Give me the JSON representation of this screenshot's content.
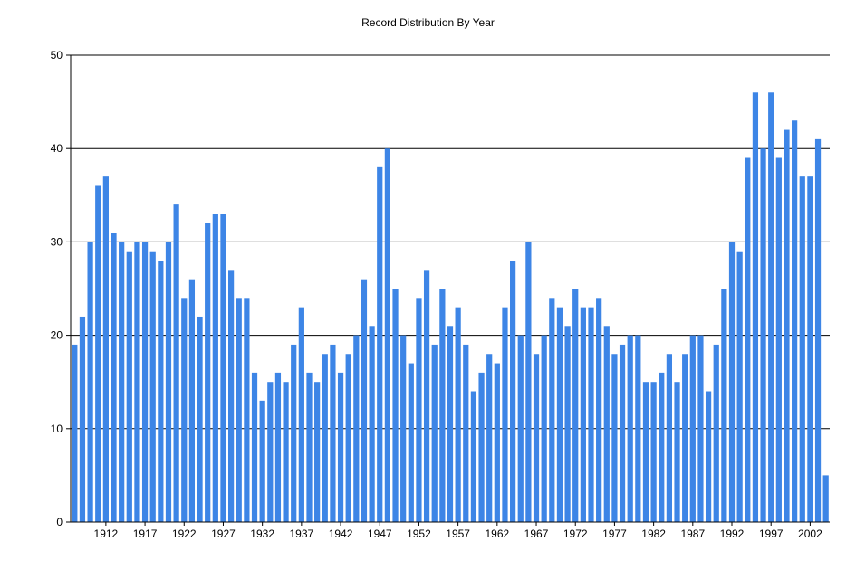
{
  "chart_data": {
    "type": "bar",
    "title": "Record Distribution By Year",
    "xlabel": "",
    "ylabel": "",
    "ylim": [
      0,
      50
    ],
    "y_ticks": [
      0,
      10,
      20,
      30,
      40,
      50
    ],
    "x_tick_labels": [
      "1912",
      "1917",
      "1922",
      "1927",
      "1932",
      "1937",
      "1942",
      "1947",
      "1952",
      "1957",
      "1962",
      "1967",
      "1972",
      "1977",
      "1982",
      "1987",
      "1992",
      "1997",
      "2002"
    ],
    "categories": [
      1908,
      1909,
      1910,
      1911,
      1912,
      1913,
      1914,
      1915,
      1916,
      1917,
      1918,
      1919,
      1920,
      1921,
      1922,
      1923,
      1924,
      1925,
      1926,
      1927,
      1928,
      1929,
      1930,
      1931,
      1932,
      1933,
      1934,
      1935,
      1936,
      1937,
      1938,
      1939,
      1940,
      1941,
      1942,
      1943,
      1944,
      1945,
      1946,
      1947,
      1948,
      1949,
      1950,
      1951,
      1952,
      1953,
      1954,
      1955,
      1956,
      1957,
      1958,
      1959,
      1960,
      1961,
      1962,
      1963,
      1964,
      1965,
      1966,
      1967,
      1968,
      1969,
      1970,
      1971,
      1972,
      1973,
      1974,
      1975,
      1976,
      1977,
      1978,
      1979,
      1980,
      1981,
      1982,
      1983,
      1984,
      1985,
      1986,
      1987,
      1988,
      1989,
      1990,
      1991,
      1992,
      1993,
      1994,
      1995,
      1996,
      1997,
      1998,
      1999,
      2000,
      2001,
      2002,
      2003,
      2004
    ],
    "values": [
      19,
      22,
      30,
      36,
      37,
      31,
      30,
      29,
      30,
      30,
      29,
      28,
      30,
      34,
      24,
      26,
      22,
      32,
      33,
      33,
      27,
      24,
      24,
      16,
      13,
      15,
      16,
      15,
      19,
      23,
      16,
      15,
      18,
      19,
      16,
      18,
      20,
      26,
      21,
      38,
      40,
      25,
      20,
      17,
      24,
      27,
      19,
      25,
      21,
      23,
      19,
      14,
      16,
      18,
      17,
      23,
      28,
      20,
      30,
      18,
      20,
      24,
      23,
      21,
      25,
      23,
      23,
      24,
      21,
      18,
      19,
      20,
      20,
      15,
      15,
      16,
      18,
      15,
      18,
      20,
      20,
      14,
      19,
      25,
      30,
      29,
      39,
      46,
      40,
      46,
      39,
      42,
      43,
      37,
      37,
      41,
      5
    ],
    "grid": true,
    "legend": "none",
    "bar_color": "#3d85e6"
  }
}
